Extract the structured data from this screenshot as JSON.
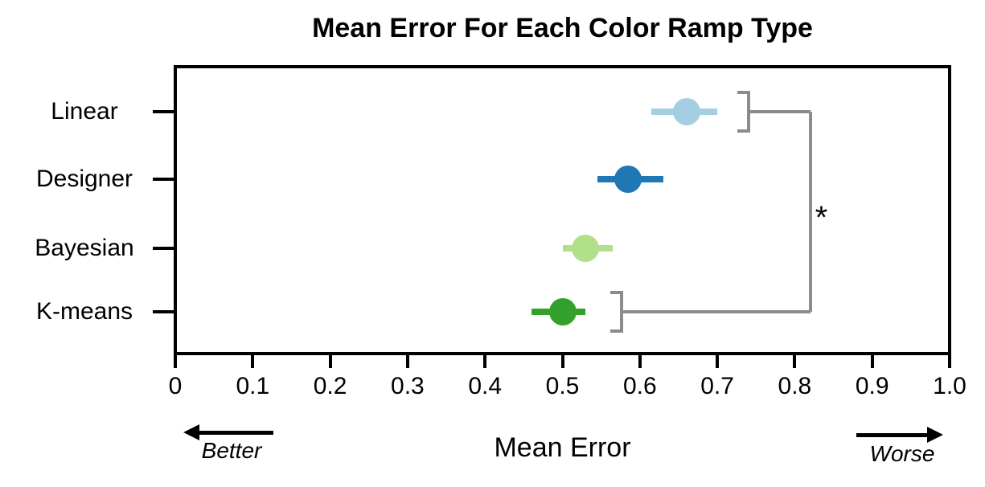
{
  "chart_data": {
    "type": "scatter",
    "title": "Mean Error For Each Color Ramp Type",
    "xlabel": "Mean Error",
    "ylabel": "",
    "xlim": [
      0,
      1.0
    ],
    "grid": false,
    "legend": null,
    "categories": [
      "Linear",
      "Designer",
      "Bayesian",
      "K-means"
    ],
    "xticks": [
      0,
      0.1,
      0.2,
      0.3,
      0.4,
      0.5,
      0.6,
      0.7,
      0.8,
      0.9,
      1.0
    ],
    "xtick_labels": [
      "0",
      "0.1",
      "0.2",
      "0.3",
      "0.4",
      "0.5",
      "0.6",
      "0.7",
      "0.8",
      "0.9",
      "1.0"
    ],
    "series": [
      {
        "name": "Linear",
        "mean": 0.66,
        "ci": [
          0.615,
          0.7
        ],
        "color": "#a6cee3"
      },
      {
        "name": "Designer",
        "mean": 0.585,
        "ci": [
          0.545,
          0.63
        ],
        "color": "#1f78b4"
      },
      {
        "name": "Bayesian",
        "mean": 0.53,
        "ci": [
          0.5,
          0.565
        ],
        "color": "#b2df8a"
      },
      {
        "name": "K-means",
        "mean": 0.5,
        "ci": [
          0.46,
          0.53
        ],
        "color": "#33a02c"
      }
    ],
    "significance": {
      "symbol": "*",
      "between": [
        "Linear",
        "K-means"
      ],
      "bracket_x": [
        0.74,
        0.576
      ],
      "line_x": 0.82,
      "color": "#8c8c8c"
    },
    "annotations": {
      "better": {
        "text": "Better",
        "direction": "left"
      },
      "worse": {
        "text": "Worse",
        "direction": "right"
      }
    },
    "axis_color": "#000000",
    "background": "#ffffff"
  }
}
